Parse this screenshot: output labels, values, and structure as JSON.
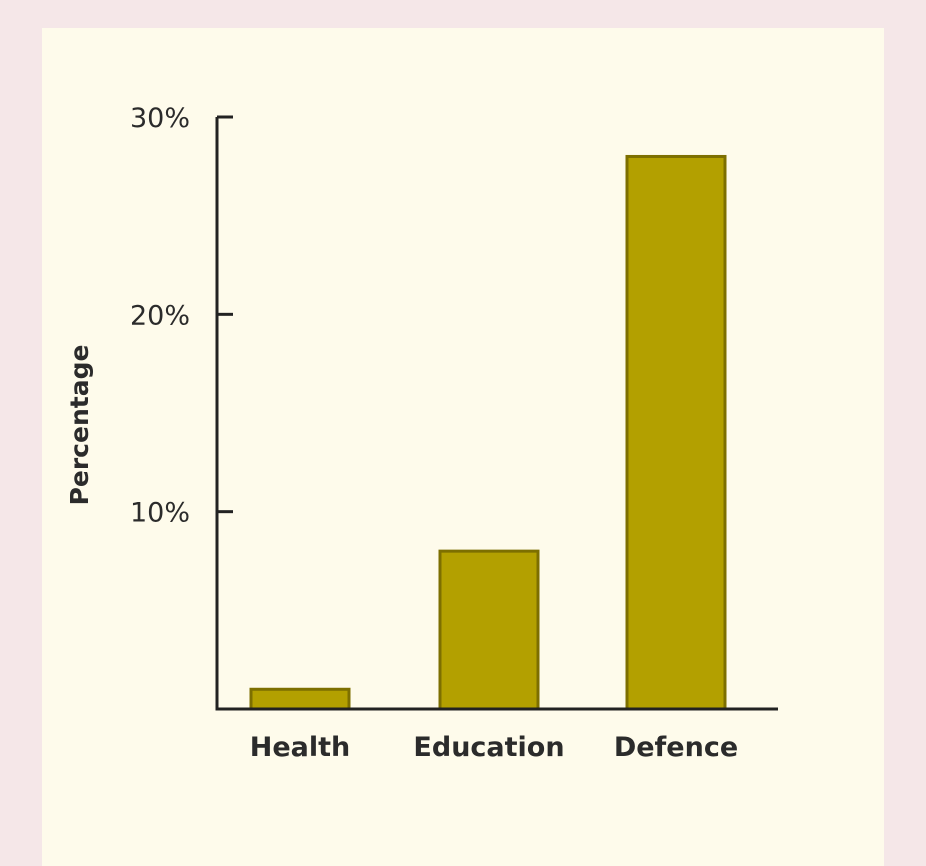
{
  "colors": {
    "bar_fill": "#b3a000",
    "bar_stroke": "#7d6f00",
    "axis": "#222222",
    "panel": "#fefbeb",
    "frame": "#f5e7e8"
  },
  "chart_data": {
    "type": "bar",
    "categories": [
      "Health",
      "Education",
      "Defence"
    ],
    "values": [
      1,
      8,
      28
    ],
    "ylabel": "Percentage",
    "ylim": [
      0,
      30
    ],
    "yticks": [
      10,
      20,
      30
    ],
    "ytick_labels": [
      "10%",
      "20%",
      "30%"
    ],
    "grid": false,
    "legend": "none"
  }
}
